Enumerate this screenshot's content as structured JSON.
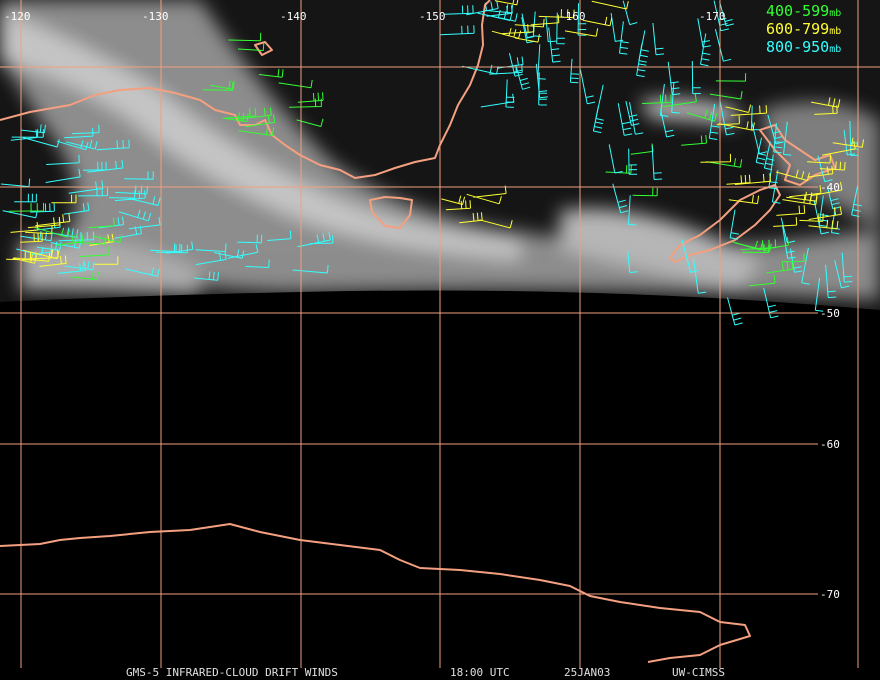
{
  "map": {
    "lon_labels": [
      "-120",
      "-130",
      "-140",
      "-150",
      "-160",
      "-170"
    ],
    "lat_labels": [
      "-40",
      "-50",
      "-60",
      "-70"
    ],
    "legend": [
      {
        "range": "400-599",
        "unit": "mb",
        "color": "#33ff33"
      },
      {
        "range": "600-799",
        "unit": "mb",
        "color": "#ffff33"
      },
      {
        "range": "800-950",
        "unit": "mb",
        "color": "#33ffff"
      }
    ],
    "footer": [
      "GMS-5 INFRARED-CLOUD DRIFT WINDS",
      "18:00 UTC",
      "25JAN03",
      "UW-CIMSS"
    ]
  }
}
